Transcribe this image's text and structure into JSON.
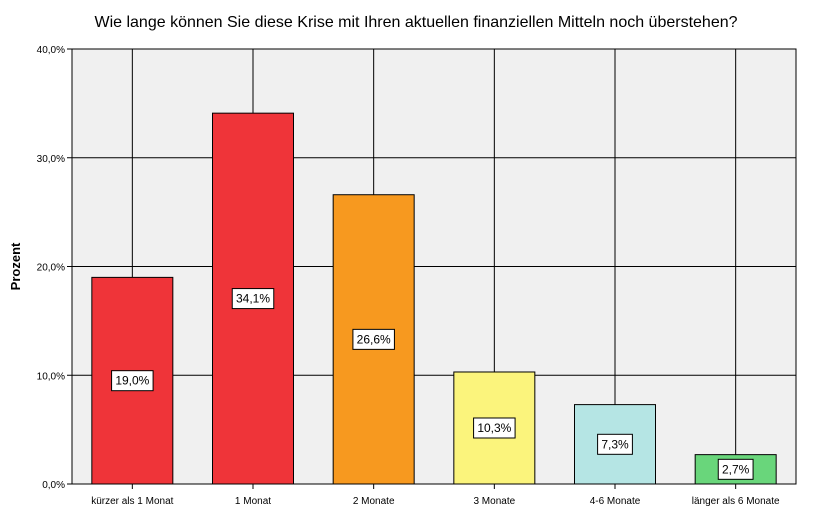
{
  "chart_data": {
    "type": "bar",
    "title": "Wie lange können Sie diese Krise mit Ihren aktuellen finanziellen Mitteln noch überstehen?",
    "xlabel": "",
    "ylabel": "Prozent",
    "ylim": [
      0,
      40
    ],
    "yticks": [
      0,
      10,
      20,
      30,
      40
    ],
    "ytick_labels": [
      "0,0%",
      "10,0%",
      "20,0%",
      "30,0%",
      "40,0%"
    ],
    "grid": true,
    "categories": [
      "kürzer als 1 Monat",
      "1 Monat",
      "2 Monate",
      "3 Monate",
      "4-6 Monate",
      "länger als 6 Monate"
    ],
    "values": [
      19.0,
      34.1,
      26.6,
      10.3,
      7.3,
      2.7
    ],
    "value_labels": [
      "19,0%",
      "34,1%",
      "26,6%",
      "10,3%",
      "7,3%",
      "2,7%"
    ],
    "colors": [
      "#ef3439",
      "#ef3439",
      "#f7991f",
      "#fbf47c",
      "#b5e5e4",
      "#69d67b"
    ],
    "plot_background": "#f0f0f0"
  }
}
